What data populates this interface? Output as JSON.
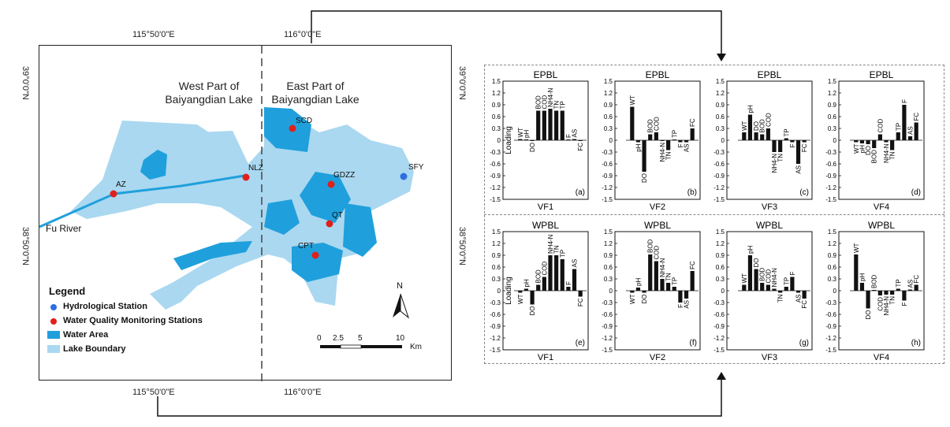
{
  "map": {
    "coords_top": [
      "115°50'0\"E",
      "116°0'0\"E"
    ],
    "coords_bottom": [
      "115°50'0\"E",
      "116°0'0\"E"
    ],
    "coords_left": [
      "39°0'0\"N",
      "38°50'0\"N"
    ],
    "coords_right": [
      "39°0'0\"N",
      "38°50'0\"N"
    ],
    "west_label": "West Part of\nBaiyangdian Lake",
    "east_label": "East Part of\nBaiyangdian Lake",
    "river_label": "Fu River",
    "stations": [
      {
        "name": "SCD",
        "type": "water-quality"
      },
      {
        "name": "NLZ",
        "type": "water-quality"
      },
      {
        "name": "GDZZ",
        "type": "water-quality"
      },
      {
        "name": "SFY",
        "type": "hydrological"
      },
      {
        "name": "AZ",
        "type": "water-quality"
      },
      {
        "name": "QT",
        "type": "water-quality"
      },
      {
        "name": "CPT",
        "type": "water-quality"
      }
    ],
    "legend": {
      "title": "Legend",
      "items": [
        {
          "label": "Hydrological Station",
          "color": "#2e6fe0"
        },
        {
          "label": "Water Quality Monitoring Stations",
          "color": "#e0201c"
        },
        {
          "label": "Water Area",
          "color": "#1fa0dc"
        },
        {
          "label": "Lake Boundary",
          "color": "#aad8f0"
        }
      ]
    },
    "north_label": "N",
    "scale": {
      "ticks": [
        "0",
        "2.5",
        "5",
        "10"
      ],
      "unit": "Km"
    },
    "colors": {
      "water": "#1fa0dc",
      "lake": "#aad8f0",
      "station_wq": "#e0201c",
      "station_hydro": "#2e6fe0"
    }
  },
  "chart_data": [
    {
      "panel": "(a)",
      "group": "EPBL",
      "type": "bar",
      "title": "EPBL",
      "xlabel": "VF1",
      "ylabel": "Loading",
      "ylim": [
        -1.5,
        1.5
      ],
      "categories": [
        "WT",
        "pH",
        "DO",
        "BOD",
        "COD",
        "NH4-N",
        "TN",
        "TP",
        "F",
        "AS",
        "FC"
      ],
      "values": [
        0.03,
        0.02,
        -0.02,
        0.75,
        0.75,
        0.8,
        0.75,
        0.75,
        0.02,
        0.03,
        -0.02
      ]
    },
    {
      "panel": "(b)",
      "group": "EPBL",
      "type": "bar",
      "title": "EPBL",
      "xlabel": "VF2",
      "ylabel": "",
      "ylim": [
        -1.5,
        1.5
      ],
      "categories": [
        "WT",
        "pH",
        "DO",
        "BOD",
        "COD",
        "NH4-N",
        "TN",
        "TP",
        "F",
        "AS",
        "FC"
      ],
      "values": [
        0.85,
        -0.05,
        -0.8,
        0.15,
        0.2,
        -0.02,
        -0.25,
        0.02,
        -0.05,
        -0.05,
        0.3
      ]
    },
    {
      "panel": "(c)",
      "group": "EPBL",
      "type": "bar",
      "title": "EPBL",
      "xlabel": "VF3",
      "ylabel": "",
      "ylim": [
        -1.5,
        1.5
      ],
      "categories": [
        "WT",
        "pH",
        "DO",
        "BOD",
        "COD",
        "NH4-N",
        "TN",
        "TP",
        "F",
        "AS",
        "FC"
      ],
      "values": [
        0.2,
        0.65,
        0.2,
        0.15,
        0.3,
        -0.3,
        -0.3,
        0.05,
        -0.05,
        -0.6,
        -0.05
      ]
    },
    {
      "panel": "(d)",
      "group": "EPBL",
      "type": "bar",
      "title": "EPBL",
      "xlabel": "VF4",
      "ylabel": "",
      "ylim": [
        -1.5,
        1.5
      ],
      "categories": [
        "WT",
        "pH",
        "DO",
        "BOD",
        "COD",
        "NH4-N",
        "TN",
        "TP",
        "F",
        "AS",
        "FC"
      ],
      "values": [
        -0.05,
        -0.08,
        -0.1,
        -0.2,
        0.15,
        -0.05,
        -0.25,
        0.2,
        0.9,
        0.1,
        0.45
      ]
    },
    {
      "panel": "(e)",
      "group": "WPBL",
      "type": "bar",
      "title": "WPBL",
      "xlabel": "VF1",
      "ylabel": "Loading",
      "ylim": [
        -1.5,
        1.5
      ],
      "categories": [
        "WT",
        "pH",
        "DO",
        "BOD",
        "COD",
        "NH4-N",
        "TN",
        "TP",
        "F",
        "AS",
        "FC"
      ],
      "values": [
        -0.05,
        0.05,
        -0.35,
        0.15,
        0.35,
        0.9,
        0.9,
        0.8,
        0.1,
        0.55,
        -0.15
      ]
    },
    {
      "panel": "(f)",
      "group": "WPBL",
      "type": "bar",
      "title": "WPBL",
      "xlabel": "VF2",
      "ylabel": "",
      "ylim": [
        -1.5,
        1.5
      ],
      "categories": [
        "WT",
        "pH",
        "DO",
        "BOD",
        "COD",
        "NH4-N",
        "TN",
        "TP",
        "F",
        "AS",
        "FC"
      ],
      "values": [
        -0.05,
        0.08,
        -0.05,
        0.92,
        0.75,
        0.3,
        0.2,
        0.1,
        -0.3,
        -0.2,
        0.5
      ]
    },
    {
      "panel": "(g)",
      "group": "WPBL",
      "type": "bar",
      "title": "WPBL",
      "xlabel": "VF3",
      "ylabel": "",
      "ylim": [
        -1.5,
        1.5
      ],
      "categories": [
        "WT",
        "pH",
        "DO",
        "BOD",
        "COD",
        "NH4-N",
        "TN",
        "TP",
        "F",
        "AS",
        "FC"
      ],
      "values": [
        0.15,
        0.9,
        0.55,
        0.2,
        0.15,
        0.05,
        -0.05,
        0.1,
        0.35,
        -0.05,
        -0.2
      ]
    },
    {
      "panel": "(h)",
      "group": "WPBL",
      "type": "bar",
      "title": "WPBL",
      "xlabel": "VF4",
      "ylabel": "",
      "ylim": [
        -1.5,
        1.5
      ],
      "categories": [
        "WT",
        "pH",
        "DO",
        "BOD",
        "COD",
        "NH4-N",
        "TN",
        "TP",
        "F",
        "AS",
        "FC"
      ],
      "values": [
        0.92,
        0.2,
        -0.45,
        0.02,
        -0.12,
        -0.1,
        -0.1,
        0.05,
        -0.25,
        0.03,
        0.15
      ]
    }
  ],
  "chart_yticks": [
    "1.5",
    "1.2",
    "0.9",
    "0.6",
    "0.3",
    "0",
    "-0.3",
    "-0.6",
    "-0.9",
    "-1.2",
    "-1.5"
  ]
}
